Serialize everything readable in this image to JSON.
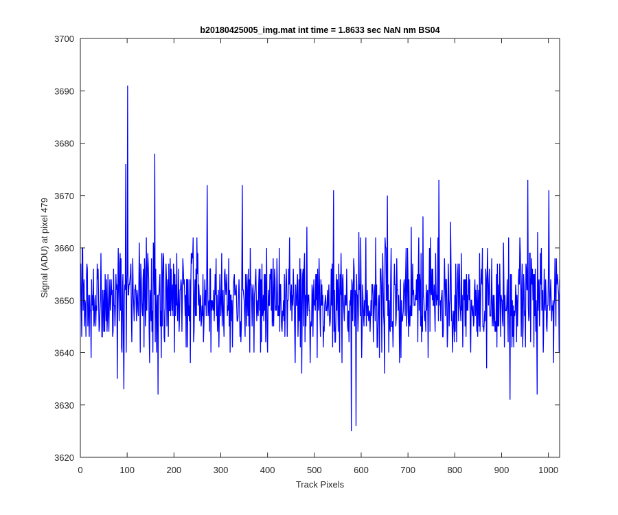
{
  "chart_data": {
    "type": "line",
    "title": "b20180425005_img.mat int time = 1.8633 sec  NaN nm BS04",
    "xlabel": "Track Pixels",
    "ylabel": "Signal (ADU) at pixel 479",
    "xlim": [
      0,
      1024
    ],
    "ylim": [
      3620,
      3700
    ],
    "xticks": [
      0,
      100,
      200,
      300,
      400,
      500,
      600,
      700,
      800,
      900,
      1000
    ],
    "yticks": [
      3620,
      3630,
      3640,
      3650,
      3660,
      3670,
      3680,
      3690,
      3700
    ],
    "grid": false,
    "legend": "none",
    "series": [
      {
        "color": "#0000ff",
        "noise": {
          "n": 1024,
          "mean": 3650,
          "sd": 5.5,
          "min": 3625,
          "max": 3691
        },
        "spikes": [
          {
            "x": 96,
            "y": 3676
          },
          {
            "x": 100,
            "y": 3691
          },
          {
            "x": 158,
            "y": 3678
          },
          {
            "x": 92,
            "y": 3633
          },
          {
            "x": 165,
            "y": 3632
          },
          {
            "x": 578,
            "y": 3625
          },
          {
            "x": 588,
            "y": 3626
          },
          {
            "x": 917,
            "y": 3631
          },
          {
            "x": 955,
            "y": 3673
          },
          {
            "x": 765,
            "y": 3673
          },
          {
            "x": 1000,
            "y": 3671
          },
          {
            "x": 270,
            "y": 3672
          },
          {
            "x": 345,
            "y": 3672
          },
          {
            "x": 540,
            "y": 3671
          },
          {
            "x": 655,
            "y": 3670
          },
          {
            "x": 975,
            "y": 3632
          }
        ]
      }
    ]
  }
}
